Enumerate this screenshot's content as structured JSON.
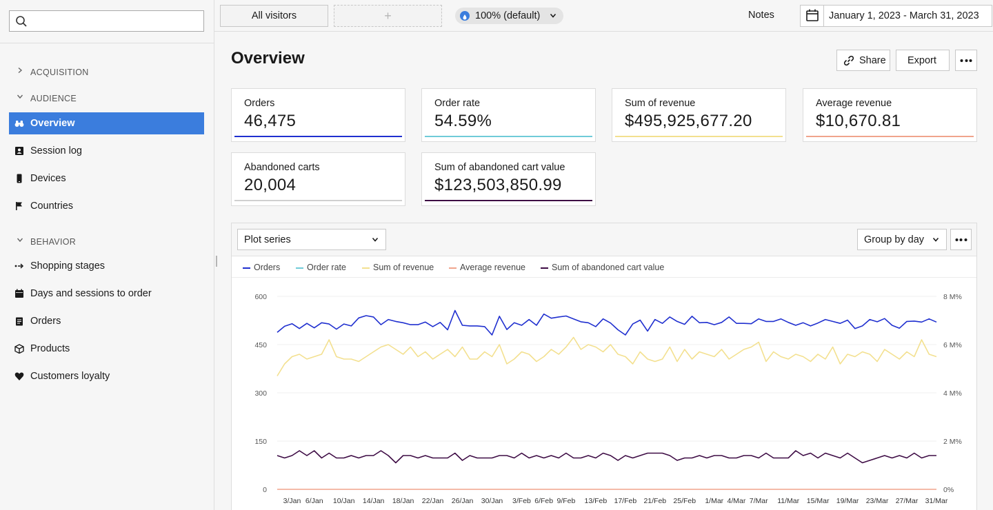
{
  "search": {
    "placeholder": ""
  },
  "sidebar": {
    "sections": [
      {
        "label": "ACQUISITION",
        "expanded": false
      },
      {
        "label": "AUDIENCE",
        "expanded": true
      },
      {
        "label": "BEHAVIOR",
        "expanded": true
      }
    ],
    "audience_items": [
      {
        "label": "Overview",
        "icon": "binoculars-icon",
        "active": true
      },
      {
        "label": "Session log",
        "icon": "id-card-icon"
      },
      {
        "label": "Devices",
        "icon": "phone-icon"
      },
      {
        "label": "Countries",
        "icon": "flag-icon"
      }
    ],
    "behavior_items": [
      {
        "label": "Shopping stages",
        "icon": "funnel-arrows-icon"
      },
      {
        "label": "Days and sessions to order",
        "icon": "calendar-icon"
      },
      {
        "label": "Orders",
        "icon": "clipboard-icon"
      },
      {
        "label": "Products",
        "icon": "box-icon"
      },
      {
        "label": "Customers loyalty",
        "icon": "heart-icon"
      }
    ]
  },
  "topbar": {
    "segment": "All visitors",
    "add_segment": "+",
    "sampling": "100% (default)",
    "notes": "Notes",
    "date_range": "January 1, 2023 - March 31, 2023"
  },
  "page": {
    "title": "Overview",
    "share": "Share",
    "export": "Export"
  },
  "kpis": [
    {
      "label": "Orders",
      "value": "46,475",
      "color": "#1f2fcf"
    },
    {
      "label": "Order rate",
      "value": "54.59%",
      "color": "#6fcbd8"
    },
    {
      "label": "Sum of revenue",
      "value": "$495,925,677.20",
      "color": "#f3e08f"
    },
    {
      "label": "Average revenue",
      "value": "$10,670.81",
      "color": "#f0a48c"
    },
    {
      "label": "Abandoned carts",
      "value": "20,004",
      "color": "#d0d0d0"
    },
    {
      "label": "Sum of abandoned cart value",
      "value": "$123,503,850.99",
      "color": "#3d0b44"
    }
  ],
  "chart_toolbar": {
    "plot_series": "Plot series",
    "group_by": "Group by day"
  },
  "chart_data": {
    "type": "line",
    "left_axis": {
      "ticks": [
        "600",
        "450",
        "300",
        "150",
        "0"
      ],
      "ylim": [
        0,
        600
      ]
    },
    "right_axis": {
      "ticks": [
        "8 M%",
        "6 M%",
        "4 M%",
        "2 M%",
        "0%"
      ],
      "ylim": [
        0,
        8
      ]
    },
    "x_ticks": [
      "3/Jan",
      "6/Jan",
      "10/Jan",
      "14/Jan",
      "18/Jan",
      "22/Jan",
      "26/Jan",
      "30/Jan",
      "3/Feb",
      "6/Feb",
      "9/Feb",
      "13/Feb",
      "17/Feb",
      "21/Feb",
      "25/Feb",
      "1/Mar",
      "4/Mar",
      "7/Mar",
      "11/Mar",
      "15/Mar",
      "19/Mar",
      "23/Mar",
      "27/Mar",
      "31/Mar"
    ],
    "x_range": [
      "2023-01-01",
      "2023-03-31"
    ],
    "grid": true,
    "legend_placement": "top-left",
    "series": [
      {
        "name": "Orders",
        "axis": "left",
        "color": "#1f2fcf",
        "values": [
          488,
          507,
          515,
          500,
          516,
          502,
          518,
          514,
          498,
          514,
          508,
          533,
          540,
          536,
          512,
          528,
          522,
          518,
          512,
          512,
          520,
          506,
          519,
          496,
          556,
          510,
          508,
          508,
          506,
          480,
          538,
          497,
          518,
          510,
          528,
          510,
          545,
          532,
          536,
          539,
          530,
          521,
          518,
          506,
          530,
          517,
          496,
          480,
          514,
          526,
          492,
          528,
          516,
          536,
          522,
          513,
          538,
          518,
          519,
          512,
          519,
          536,
          516,
          516,
          515,
          530,
          522,
          522,
          530,
          519,
          510,
          518,
          508,
          517,
          528,
          522,
          516,
          526,
          500,
          508,
          528,
          521,
          531,
          510,
          501,
          522,
          523,
          520,
          530,
          520
        ]
      },
      {
        "name": "Order rate",
        "axis": "left",
        "color": "#6fcbd8",
        "values": []
      },
      {
        "name": "Sum of revenue",
        "axis": "right",
        "color": "#f3e08f",
        "values": [
          4.7,
          5.2,
          5.5,
          5.6,
          5.4,
          5.5,
          5.6,
          6.2,
          5.5,
          5.4,
          5.4,
          5.3,
          5.5,
          5.7,
          5.9,
          6.0,
          5.8,
          5.6,
          5.9,
          5.5,
          5.7,
          5.4,
          5.6,
          5.8,
          5.5,
          5.9,
          5.4,
          5.4,
          5.7,
          5.5,
          6.0,
          5.2,
          5.4,
          5.7,
          5.6,
          5.3,
          5.5,
          5.8,
          5.6,
          5.9,
          6.3,
          5.8,
          6.0,
          5.9,
          5.7,
          6.0,
          5.6,
          5.5,
          5.2,
          5.7,
          5.4,
          5.3,
          5.4,
          5.9,
          5.3,
          5.8,
          5.4,
          5.7,
          5.6,
          5.5,
          5.8,
          5.4,
          5.6,
          5.8,
          5.9,
          6.1,
          5.3,
          5.7,
          5.5,
          5.4,
          5.6,
          5.5,
          5.3,
          5.6,
          5.4,
          5.9,
          5.2,
          5.6,
          5.5,
          5.7,
          5.6,
          5.3,
          5.8,
          5.6,
          5.4,
          5.7,
          5.5,
          6.2,
          5.6,
          5.5
        ]
      },
      {
        "name": "Average revenue",
        "axis": "left",
        "color": "#f0a48c",
        "values": [
          0,
          0,
          0,
          0,
          0,
          0,
          0,
          0,
          0,
          0,
          0,
          0,
          0,
          0,
          0,
          0,
          0,
          0,
          0,
          0,
          0,
          0,
          0,
          0,
          0,
          0,
          0,
          0,
          0,
          0,
          0,
          0,
          0,
          0,
          0,
          0,
          0,
          0,
          0,
          0,
          0,
          0,
          0,
          0,
          0,
          0,
          0,
          0,
          0,
          0,
          0,
          0,
          0,
          0,
          0,
          0,
          0,
          0,
          0,
          0,
          0,
          0,
          0,
          0,
          0,
          0,
          0,
          0,
          0,
          0,
          0,
          0,
          0,
          0,
          0,
          0,
          0,
          0,
          0,
          0,
          0,
          0,
          0,
          0,
          0,
          0,
          0,
          0,
          0,
          0
        ]
      },
      {
        "name": "Sum of abandoned cart value",
        "axis": "right",
        "color": "#3d0b44",
        "values": [
          1.4,
          1.3,
          1.4,
          1.6,
          1.4,
          1.6,
          1.3,
          1.5,
          1.3,
          1.3,
          1.4,
          1.3,
          1.4,
          1.4,
          1.6,
          1.4,
          1.1,
          1.4,
          1.4,
          1.3,
          1.4,
          1.3,
          1.3,
          1.3,
          1.5,
          1.2,
          1.4,
          1.3,
          1.3,
          1.3,
          1.4,
          1.4,
          1.3,
          1.5,
          1.3,
          1.4,
          1.3,
          1.4,
          1.3,
          1.5,
          1.3,
          1.3,
          1.4,
          1.3,
          1.5,
          1.4,
          1.2,
          1.4,
          1.3,
          1.4,
          1.5,
          1.5,
          1.5,
          1.4,
          1.2,
          1.3,
          1.3,
          1.4,
          1.3,
          1.4,
          1.4,
          1.3,
          1.3,
          1.4,
          1.4,
          1.3,
          1.5,
          1.3,
          1.3,
          1.3,
          1.6,
          1.4,
          1.5,
          1.3,
          1.5,
          1.4,
          1.3,
          1.5,
          1.3,
          1.1,
          1.2,
          1.3,
          1.4,
          1.3,
          1.4,
          1.3,
          1.5,
          1.3,
          1.4,
          1.4
        ]
      }
    ]
  }
}
